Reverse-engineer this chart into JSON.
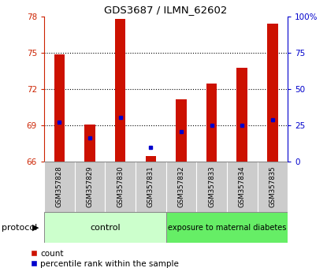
{
  "title": "GDS3687 / ILMN_62602",
  "samples": [
    "GSM357828",
    "GSM357829",
    "GSM357830",
    "GSM357831",
    "GSM357832",
    "GSM357833",
    "GSM357834",
    "GSM357835"
  ],
  "count_values": [
    74.9,
    69.1,
    77.8,
    66.5,
    71.2,
    72.5,
    73.8,
    77.4
  ],
  "percentile_values": [
    69.3,
    68.0,
    69.7,
    67.2,
    68.5,
    69.0,
    69.0,
    69.5
  ],
  "ylim_left": [
    66,
    78
  ],
  "ylim_right": [
    0,
    100
  ],
  "yticks_left": [
    66,
    69,
    72,
    75,
    78
  ],
  "yticks_right": [
    0,
    25,
    50,
    75,
    100
  ],
  "ytick_labels_right": [
    "0",
    "25",
    "50",
    "75",
    "100%"
  ],
  "bar_bottom": 66,
  "bar_color": "#cc1100",
  "percentile_color": "#0000cc",
  "control_samples": 4,
  "control_label": "control",
  "exposure_label": "exposure to maternal diabetes",
  "control_color": "#ccffcc",
  "exposure_color": "#66ee66",
  "protocol_label": "protocol",
  "legend_count": "count",
  "legend_percentile": "percentile rank within the sample",
  "left_tick_color": "#cc2200",
  "right_tick_color": "#0000cc",
  "dotted_yticks": [
    69,
    72,
    75
  ],
  "xtick_bg": "#cccccc"
}
